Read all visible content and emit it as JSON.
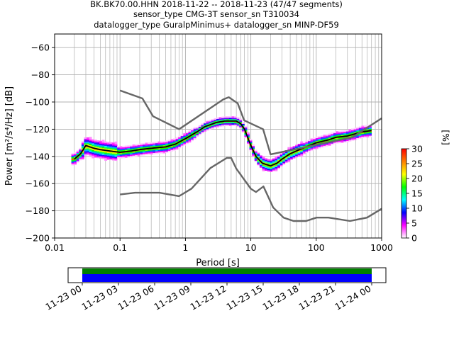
{
  "title": {
    "line1": "BK.BK70.00.HHN   2018-11-22 -- 2018-11-23  (47/47 segments)",
    "line2": "sensor_type CMG-3T sensor_sn T310034",
    "line3": "datalogger_type GuralpMinimus+ datalogger_sn MINP-DF59"
  },
  "chart_data": {
    "type": "heatmap",
    "xlabel": "Period [s]",
    "ylabel": "Power [m²/s⁴/Hz] [dB]",
    "xscale": "log",
    "xlim": [
      0.01,
      1000
    ],
    "ylim": [
      -200,
      -50
    ],
    "x_ticks": [
      {
        "value": 0.01,
        "label": "0.01"
      },
      {
        "value": 0.1,
        "label": "0.1"
      },
      {
        "value": 1,
        "label": "1"
      },
      {
        "value": 10,
        "label": "10"
      },
      {
        "value": 100,
        "label": "100"
      },
      {
        "value": 1000,
        "label": "1000"
      }
    ],
    "y_ticks": [
      {
        "value": -60,
        "label": "−60"
      },
      {
        "value": -80,
        "label": "−80"
      },
      {
        "value": -100,
        "label": "−100"
      },
      {
        "value": -120,
        "label": "−120"
      },
      {
        "value": -140,
        "label": "−140"
      },
      {
        "value": -160,
        "label": "−160"
      },
      {
        "value": -180,
        "label": "−180"
      },
      {
        "value": -200,
        "label": "−200"
      }
    ],
    "grid": true,
    "series": [
      {
        "role": "mode-line",
        "color": "#000000",
        "x": [
          0.02,
          0.025,
          0.03,
          0.04,
          0.05,
          0.07,
          0.1,
          0.15,
          0.2,
          0.3,
          0.5,
          0.7,
          1,
          1.5,
          2,
          3,
          4,
          5,
          6,
          7,
          8,
          10,
          12,
          15,
          20,
          25,
          30,
          40,
          50,
          70,
          100,
          150,
          200,
          300,
          500,
          700
        ],
        "y": [
          -142,
          -138,
          -132,
          -134,
          -135,
          -136,
          -137,
          -136,
          -135,
          -134,
          -133,
          -131,
          -127,
          -122,
          -118,
          -115,
          -114,
          -114,
          -114,
          -116,
          -120,
          -132,
          -140,
          -145,
          -147,
          -145,
          -142,
          -138,
          -136,
          -133,
          -130,
          -128,
          -126,
          -125,
          -122,
          -121
        ]
      },
      {
        "role": "new-high-noise-model",
        "color": "#666666",
        "x": [
          0.1,
          0.22,
          0.32,
          0.8,
          3.8,
          4.6,
          6.3,
          7.9,
          15.4,
          20,
          354.8,
          1000
        ],
        "y": [
          -91.5,
          -97.4,
          -110.5,
          -120,
          -98,
          -96.5,
          -101,
          -113.5,
          -120,
          -138.5,
          -126,
          -112
        ]
      },
      {
        "role": "new-low-noise-model",
        "color": "#666666",
        "x": [
          0.1,
          0.17,
          0.4,
          0.8,
          1.24,
          2.4,
          4.3,
          5,
          6,
          10,
          12,
          15.6,
          21.9,
          31.6,
          45,
          70,
          101,
          154,
          328,
          600,
          1000
        ],
        "y": [
          -168,
          -166.7,
          -166.7,
          -169.2,
          -163.7,
          -148.6,
          -141.1,
          -141.1,
          -149,
          -163.8,
          -166.2,
          -162.1,
          -177.5,
          -185,
          -187.5,
          -187.5,
          -185,
          -185,
          -187.5,
          -185,
          -178.5
        ]
      }
    ],
    "colorbar": {
      "label": "[%]",
      "range": [
        0,
        30
      ],
      "ticks": [
        "0",
        "5",
        "10",
        "15",
        "20",
        "25",
        "30"
      ],
      "colormap": [
        "#ffffff",
        "#ff00ff",
        "#0000ff",
        "#00ffff",
        "#00ff00",
        "#ffff00",
        "#ff7f00",
        "#ff0000"
      ]
    },
    "timeline": {
      "ticks": [
        "11-23 00",
        "11-23 03",
        "11-23 06",
        "11-23 09",
        "11-23 12",
        "11-23 15",
        "11-23 18",
        "11-23 21",
        "11-24 00"
      ],
      "coverage_colors": [
        "#008000",
        "#0000ff"
      ]
    }
  }
}
